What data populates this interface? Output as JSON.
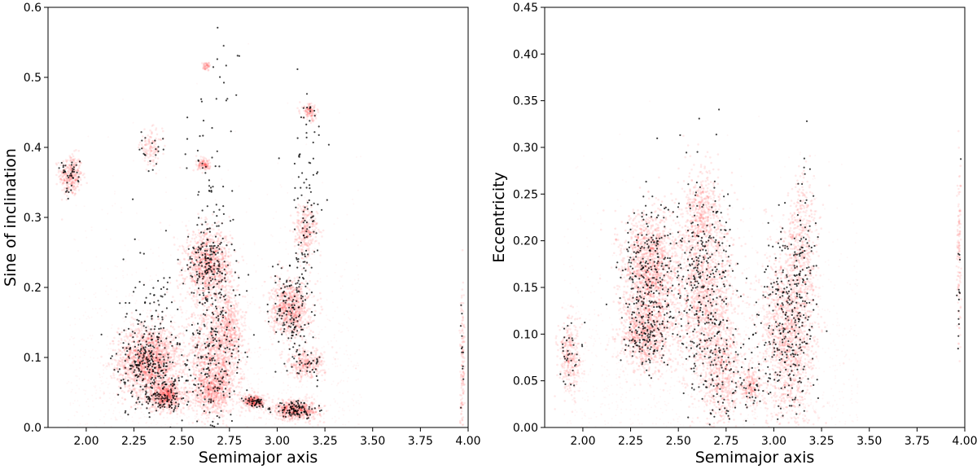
{
  "chart_data": [
    {
      "type": "scatter",
      "title": "",
      "xlabel": "Semimajor axis",
      "ylabel": "Sine of inclination",
      "xlim": [
        1.8,
        4.0
      ],
      "ylim": [
        0.0,
        0.6
      ],
      "xticks": [
        "2.00",
        "2.25",
        "2.50",
        "2.75",
        "3.00",
        "3.25",
        "3.50",
        "3.75",
        "4.00"
      ],
      "yticks": [
        "0.0",
        "0.1",
        "0.2",
        "0.3",
        "0.4",
        "0.5",
        "0.6"
      ],
      "grid": false,
      "colors": {
        "density": "#ff0000",
        "points": "#000000"
      },
      "series": [
        {
          "kind": "density-clusters",
          "points": [
            {
              "x": 1.92,
              "y": 0.36,
              "sx": 0.03,
              "sy": 0.015,
              "n": 320
            },
            {
              "x": 2.33,
              "y": 0.095,
              "sx": 0.08,
              "sy": 0.025,
              "n": 1700
            },
            {
              "x": 2.42,
              "y": 0.045,
              "sx": 0.05,
              "sy": 0.01,
              "n": 700
            },
            {
              "x": 2.34,
              "y": 0.4,
              "sx": 0.03,
              "sy": 0.012,
              "n": 120
            },
            {
              "x": 2.64,
              "y": 0.23,
              "sx": 0.06,
              "sy": 0.025,
              "n": 1100
            },
            {
              "x": 2.68,
              "y": 0.1,
              "sx": 0.07,
              "sy": 0.04,
              "n": 1200
            },
            {
              "x": 2.75,
              "y": 0.15,
              "sx": 0.03,
              "sy": 0.02,
              "n": 300
            },
            {
              "x": 2.66,
              "y": 0.05,
              "sx": 0.05,
              "sy": 0.015,
              "n": 500
            },
            {
              "x": 2.88,
              "y": 0.037,
              "sx": 0.03,
              "sy": 0.005,
              "n": 300
            },
            {
              "x": 3.07,
              "y": 0.17,
              "sx": 0.05,
              "sy": 0.02,
              "n": 800
            },
            {
              "x": 3.1,
              "y": 0.025,
              "sx": 0.06,
              "sy": 0.007,
              "n": 600
            },
            {
              "x": 3.15,
              "y": 0.28,
              "sx": 0.03,
              "sy": 0.02,
              "n": 300
            },
            {
              "x": 3.15,
              "y": 0.09,
              "sx": 0.05,
              "sy": 0.01,
              "n": 300
            },
            {
              "x": 3.17,
              "y": 0.45,
              "sx": 0.02,
              "sy": 0.006,
              "n": 120
            },
            {
              "x": 2.62,
              "y": 0.375,
              "sx": 0.02,
              "sy": 0.004,
              "n": 120
            },
            {
              "x": 2.63,
              "y": 0.515,
              "sx": 0.01,
              "sy": 0.003,
              "n": 50
            },
            {
              "x": 3.97,
              "y": 0.09,
              "sx": 0.006,
              "sy": 0.06,
              "n": 150
            }
          ]
        },
        {
          "kind": "points",
          "points": [
            {
              "x": 1.92,
              "y": 0.36,
              "sx": 0.025,
              "sy": 0.012,
              "n": 40
            },
            {
              "x": 2.33,
              "y": 0.09,
              "sx": 0.08,
              "sy": 0.03,
              "n": 260
            },
            {
              "x": 2.42,
              "y": 0.04,
              "sx": 0.05,
              "sy": 0.01,
              "n": 80
            },
            {
              "x": 2.35,
              "y": 0.15,
              "sx": 0.08,
              "sy": 0.06,
              "n": 90
            },
            {
              "x": 2.34,
              "y": 0.4,
              "sx": 0.03,
              "sy": 0.015,
              "n": 20
            },
            {
              "x": 2.64,
              "y": 0.23,
              "sx": 0.06,
              "sy": 0.03,
              "n": 170
            },
            {
              "x": 2.68,
              "y": 0.1,
              "sx": 0.07,
              "sy": 0.05,
              "n": 220
            },
            {
              "x": 2.65,
              "y": 0.35,
              "sx": 0.06,
              "sy": 0.08,
              "n": 60
            },
            {
              "x": 2.88,
              "y": 0.037,
              "sx": 0.03,
              "sy": 0.004,
              "n": 40
            },
            {
              "x": 3.07,
              "y": 0.17,
              "sx": 0.05,
              "sy": 0.03,
              "n": 140
            },
            {
              "x": 3.1,
              "y": 0.025,
              "sx": 0.06,
              "sy": 0.006,
              "n": 100
            },
            {
              "x": 3.15,
              "y": 0.28,
              "sx": 0.04,
              "sy": 0.04,
              "n": 60
            },
            {
              "x": 3.15,
              "y": 0.09,
              "sx": 0.05,
              "sy": 0.01,
              "n": 40
            },
            {
              "x": 3.15,
              "y": 0.38,
              "sx": 0.04,
              "sy": 0.06,
              "n": 35
            },
            {
              "x": 3.17,
              "y": 0.45,
              "sx": 0.02,
              "sy": 0.006,
              "n": 10
            },
            {
              "x": 3.97,
              "y": 0.1,
              "sx": 0.004,
              "sy": 0.05,
              "n": 12
            },
            {
              "x": 2.7,
              "y": 0.52,
              "sx": 0.04,
              "sy": 0.02,
              "n": 8
            }
          ]
        }
      ]
    },
    {
      "type": "scatter",
      "title": "",
      "xlabel": "Semimajor axis",
      "ylabel": "Eccentricity",
      "xlim": [
        1.8,
        4.0
      ],
      "ylim": [
        0.0,
        0.45
      ],
      "xticks": [
        "2.00",
        "2.25",
        "2.50",
        "2.75",
        "3.00",
        "3.25",
        "3.50",
        "3.75",
        "4.00"
      ],
      "yticks": [
        "0.00",
        "0.05",
        "0.10",
        "0.15",
        "0.20",
        "0.25",
        "0.30",
        "0.35",
        "0.40",
        "0.45"
      ],
      "grid": false,
      "colors": {
        "density": "#ff0000",
        "points": "#000000"
      },
      "series": [
        {
          "kind": "density-clusters",
          "points": [
            {
              "x": 1.93,
              "y": 0.075,
              "sx": 0.03,
              "sy": 0.02,
              "n": 300
            },
            {
              "x": 2.35,
              "y": 0.17,
              "sx": 0.07,
              "sy": 0.03,
              "n": 1400
            },
            {
              "x": 2.33,
              "y": 0.1,
              "sx": 0.07,
              "sy": 0.02,
              "n": 900
            },
            {
              "x": 2.63,
              "y": 0.15,
              "sx": 0.08,
              "sy": 0.05,
              "n": 1500
            },
            {
              "x": 2.63,
              "y": 0.235,
              "sx": 0.04,
              "sy": 0.02,
              "n": 300
            },
            {
              "x": 2.73,
              "y": 0.06,
              "sx": 0.05,
              "sy": 0.03,
              "n": 600
            },
            {
              "x": 2.88,
              "y": 0.045,
              "sx": 0.03,
              "sy": 0.01,
              "n": 200
            },
            {
              "x": 3.07,
              "y": 0.1,
              "sx": 0.07,
              "sy": 0.05,
              "n": 1400
            },
            {
              "x": 3.15,
              "y": 0.19,
              "sx": 0.04,
              "sy": 0.04,
              "n": 400
            },
            {
              "x": 3.97,
              "y": 0.19,
              "sx": 0.005,
              "sy": 0.05,
              "n": 120
            }
          ]
        },
        {
          "kind": "points",
          "points": [
            {
              "x": 1.93,
              "y": 0.075,
              "sx": 0.03,
              "sy": 0.02,
              "n": 35
            },
            {
              "x": 2.35,
              "y": 0.16,
              "sx": 0.07,
              "sy": 0.04,
              "n": 260
            },
            {
              "x": 2.33,
              "y": 0.1,
              "sx": 0.06,
              "sy": 0.02,
              "n": 100
            },
            {
              "x": 2.63,
              "y": 0.15,
              "sx": 0.08,
              "sy": 0.06,
              "n": 330
            },
            {
              "x": 2.73,
              "y": 0.06,
              "sx": 0.05,
              "sy": 0.03,
              "n": 90
            },
            {
              "x": 2.88,
              "y": 0.045,
              "sx": 0.03,
              "sy": 0.01,
              "n": 25
            },
            {
              "x": 3.07,
              "y": 0.11,
              "sx": 0.07,
              "sy": 0.05,
              "n": 280
            },
            {
              "x": 3.15,
              "y": 0.18,
              "sx": 0.04,
              "sy": 0.05,
              "n": 70
            },
            {
              "x": 3.97,
              "y": 0.16,
              "sx": 0.004,
              "sy": 0.06,
              "n": 14
            }
          ]
        }
      ]
    }
  ]
}
